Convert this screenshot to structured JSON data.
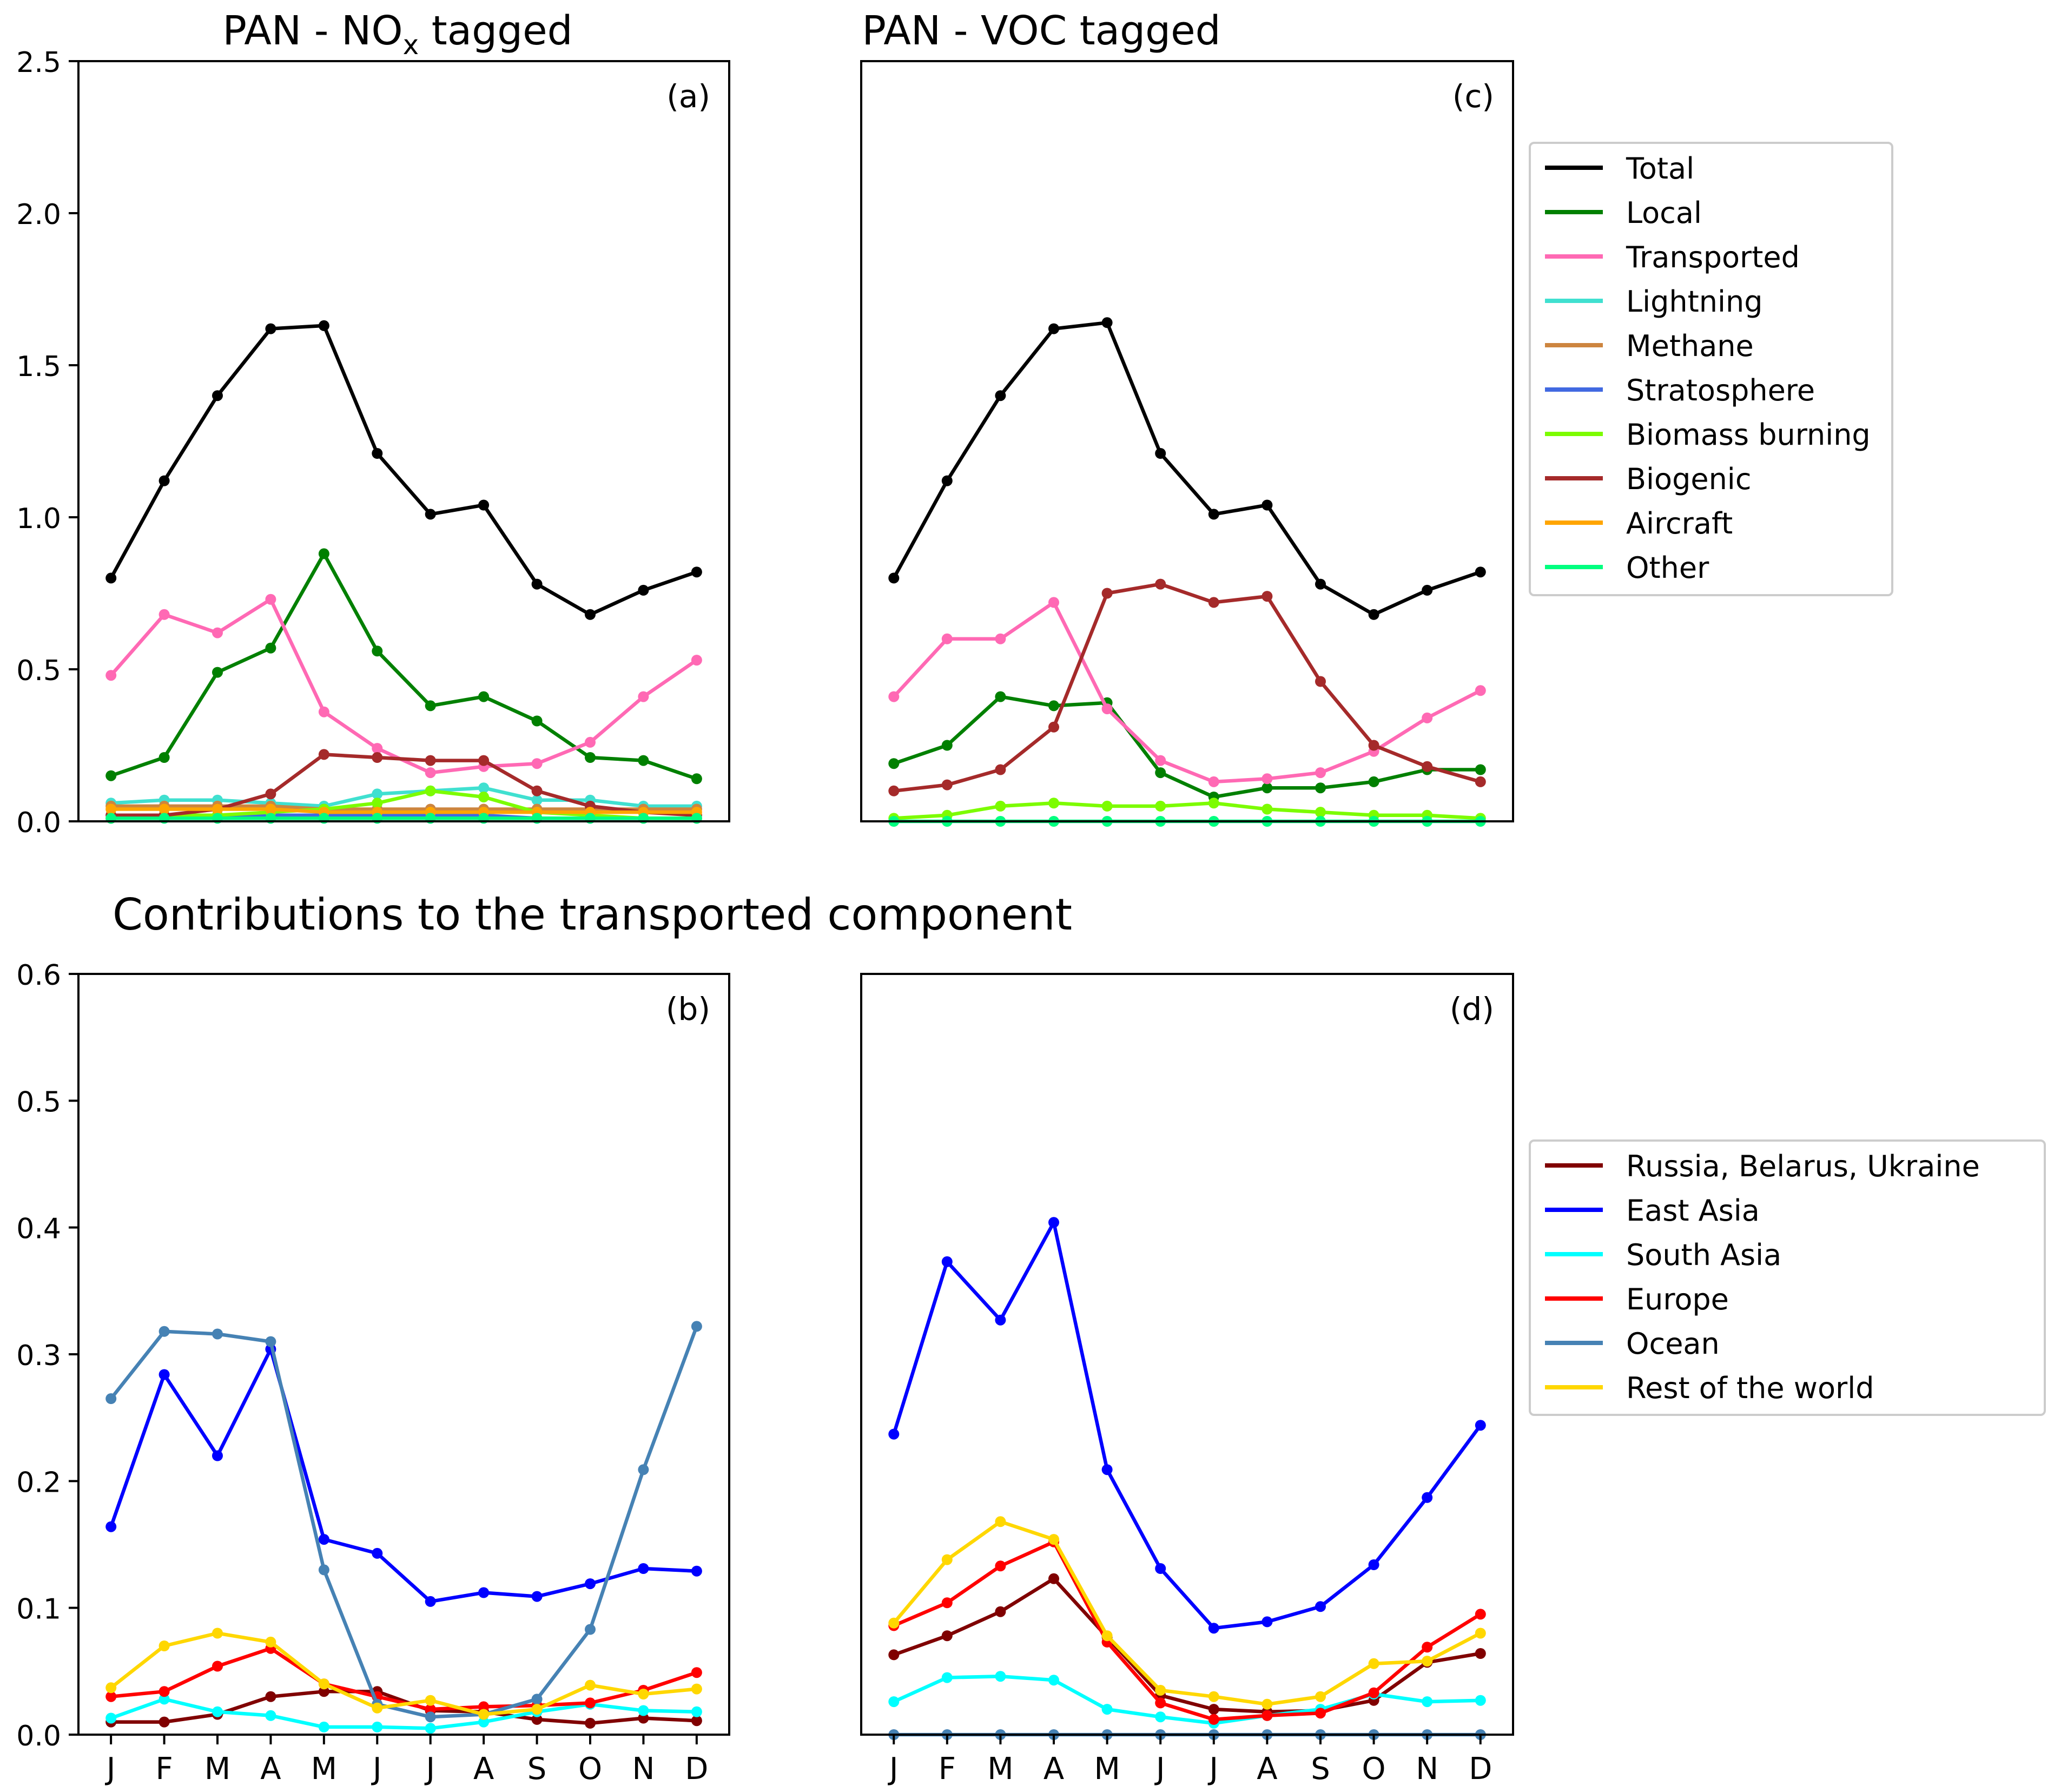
{
  "months": [
    "J",
    "F",
    "M",
    "A",
    "M",
    "J",
    "J",
    "A",
    "S",
    "O",
    "N",
    "D"
  ],
  "section_title": "Contributions to the transported component",
  "legend_top": [
    {
      "name": "Total",
      "color": "#000000"
    },
    {
      "name": "Local",
      "color": "#008000"
    },
    {
      "name": "Transported",
      "color": "#ff69b4"
    },
    {
      "name": "Lightning",
      "color": "#40e0d0"
    },
    {
      "name": "Methane",
      "color": "#cd853f"
    },
    {
      "name": "Stratosphere",
      "color": "#4169e1"
    },
    {
      "name": "Biomass burning",
      "color": "#7cfc00"
    },
    {
      "name": "Biogenic",
      "color": "#a52a2a"
    },
    {
      "name": "Aircraft",
      "color": "#ffa500"
    },
    {
      "name": "Other",
      "color": "#00ff7f"
    }
  ],
  "legend_bottom": [
    {
      "name": "Russia, Belarus, Ukraine",
      "color": "#800000"
    },
    {
      "name": "East Asia",
      "color": "#0000ff"
    },
    {
      "name": "South Asia",
      "color": "#00ffff"
    },
    {
      "name": "Europe",
      "color": "#ff0000"
    },
    {
      "name": "Ocean",
      "color": "#4682b4"
    },
    {
      "name": "Rest of the world",
      "color": "#ffd700"
    }
  ],
  "chart_data": [
    {
      "type": "line",
      "panel": "(a)",
      "title_parts": [
        "PAN",
        " - NO",
        "x",
        " tagged"
      ],
      "ylim": [
        0,
        2.5
      ],
      "yticks": [
        "0.0",
        "0.5",
        "1.0",
        "1.5",
        "2.0",
        "2.5"
      ],
      "show_yticks": true,
      "show_xticks": false,
      "series": [
        {
          "name": "Total",
          "color": "#000000",
          "values": [
            0.8,
            1.12,
            1.4,
            1.62,
            1.63,
            1.21,
            1.01,
            1.04,
            0.78,
            0.68,
            0.76,
            0.82
          ]
        },
        {
          "name": "Local",
          "color": "#008000",
          "values": [
            0.15,
            0.21,
            0.49,
            0.57,
            0.88,
            0.56,
            0.38,
            0.41,
            0.33,
            0.21,
            0.2,
            0.14
          ]
        },
        {
          "name": "Transported",
          "color": "#ff69b4",
          "values": [
            0.48,
            0.68,
            0.62,
            0.73,
            0.36,
            0.24,
            0.16,
            0.18,
            0.19,
            0.26,
            0.41,
            0.53
          ]
        },
        {
          "name": "Lightning",
          "color": "#40e0d0",
          "values": [
            0.06,
            0.07,
            0.07,
            0.06,
            0.05,
            0.09,
            0.1,
            0.11,
            0.07,
            0.07,
            0.05,
            0.05
          ]
        },
        {
          "name": "Methane",
          "color": "#cd853f",
          "values": [
            0.05,
            0.05,
            0.05,
            0.05,
            0.04,
            0.04,
            0.04,
            0.04,
            0.04,
            0.04,
            0.04,
            0.04
          ]
        },
        {
          "name": "Stratosphere",
          "color": "#4169e1",
          "values": [
            0.02,
            0.02,
            0.02,
            0.02,
            0.02,
            0.02,
            0.02,
            0.02,
            0.01,
            0.01,
            0.01,
            0.01
          ]
        },
        {
          "name": "Biomass burning",
          "color": "#7cfc00",
          "values": [
            0.01,
            0.02,
            0.02,
            0.03,
            0.04,
            0.06,
            0.1,
            0.08,
            0.03,
            0.02,
            0.01,
            0.01
          ]
        },
        {
          "name": "Biogenic",
          "color": "#a52a2a",
          "values": [
            0.02,
            0.02,
            0.04,
            0.09,
            0.22,
            0.21,
            0.2,
            0.2,
            0.1,
            0.05,
            0.03,
            0.02
          ]
        },
        {
          "name": "Aircraft",
          "color": "#ffa500",
          "values": [
            0.04,
            0.04,
            0.04,
            0.04,
            0.03,
            0.03,
            0.03,
            0.03,
            0.03,
            0.03,
            0.03,
            0.03
          ]
        },
        {
          "name": "Other",
          "color": "#00ff7f",
          "values": [
            0.01,
            0.01,
            0.01,
            0.01,
            0.01,
            0.01,
            0.01,
            0.01,
            0.01,
            0.01,
            0.01,
            0.01
          ]
        }
      ]
    },
    {
      "type": "line",
      "panel": "(c)",
      "title_parts": [
        "PAN",
        " - VOC tagged",
        "",
        ""
      ],
      "ylim": [
        0,
        2.5
      ],
      "yticks": [],
      "show_yticks": false,
      "show_xticks": false,
      "series": [
        {
          "name": "Total",
          "color": "#000000",
          "values": [
            0.8,
            1.12,
            1.4,
            1.62,
            1.64,
            1.21,
            1.01,
            1.04,
            0.78,
            0.68,
            0.76,
            0.82
          ]
        },
        {
          "name": "Local",
          "color": "#008000",
          "values": [
            0.19,
            0.25,
            0.41,
            0.38,
            0.39,
            0.16,
            0.08,
            0.11,
            0.11,
            0.13,
            0.17,
            0.17
          ]
        },
        {
          "name": "Transported",
          "color": "#ff69b4",
          "values": [
            0.41,
            0.6,
            0.6,
            0.72,
            0.37,
            0.2,
            0.13,
            0.14,
            0.16,
            0.23,
            0.34,
            0.43
          ]
        },
        {
          "name": "Biomass burning",
          "color": "#7cfc00",
          "values": [
            0.01,
            0.02,
            0.05,
            0.06,
            0.05,
            0.05,
            0.06,
            0.04,
            0.03,
            0.02,
            0.02,
            0.01
          ]
        },
        {
          "name": "Biogenic",
          "color": "#a52a2a",
          "values": [
            0.1,
            0.12,
            0.17,
            0.31,
            0.75,
            0.78,
            0.72,
            0.74,
            0.46,
            0.25,
            0.18,
            0.13
          ]
        },
        {
          "name": "Other",
          "color": "#00ff7f",
          "values": [
            0.0,
            0.0,
            0.0,
            0.0,
            0.0,
            0.0,
            0.0,
            0.0,
            0.0,
            0.0,
            0.0,
            0.0
          ]
        }
      ]
    },
    {
      "type": "line",
      "panel": "(b)",
      "title_parts": [
        "",
        "",
        "",
        ""
      ],
      "ylim": [
        0,
        0.6
      ],
      "yticks": [
        "0.0",
        "0.1",
        "0.2",
        "0.3",
        "0.4",
        "0.5",
        "0.6"
      ],
      "show_yticks": true,
      "show_xticks": true,
      "series": [
        {
          "name": "Russia, Belarus, Ukraine",
          "color": "#800000",
          "values": [
            0.01,
            0.01,
            0.016,
            0.03,
            0.034,
            0.034,
            0.019,
            0.018,
            0.012,
            0.009,
            0.013,
            0.011
          ]
        },
        {
          "name": "East Asia",
          "color": "#0000ff",
          "values": [
            0.164,
            0.284,
            0.22,
            0.304,
            0.154,
            0.143,
            0.105,
            0.112,
            0.109,
            0.119,
            0.131,
            0.129
          ]
        },
        {
          "name": "South Asia",
          "color": "#00ffff",
          "values": [
            0.013,
            0.028,
            0.018,
            0.015,
            0.006,
            0.006,
            0.005,
            0.01,
            0.018,
            0.024,
            0.019,
            0.018
          ]
        },
        {
          "name": "Europe",
          "color": "#ff0000",
          "values": [
            0.03,
            0.034,
            0.054,
            0.068,
            0.04,
            0.03,
            0.02,
            0.022,
            0.023,
            0.025,
            0.035,
            0.049
          ]
        },
        {
          "name": "Ocean",
          "color": "#4682b4",
          "values": [
            0.265,
            0.318,
            0.316,
            0.31,
            0.13,
            0.024,
            0.014,
            0.016,
            0.028,
            0.083,
            0.209,
            0.322
          ]
        },
        {
          "name": "Rest of the world",
          "color": "#ffd700",
          "values": [
            0.037,
            0.07,
            0.08,
            0.073,
            0.04,
            0.021,
            0.027,
            0.016,
            0.02,
            0.039,
            0.032,
            0.036
          ]
        }
      ]
    },
    {
      "type": "line",
      "panel": "(d)",
      "title_parts": [
        "",
        "",
        "",
        ""
      ],
      "ylim": [
        0,
        0.6
      ],
      "yticks": [],
      "show_yticks": false,
      "show_xticks": true,
      "series": [
        {
          "name": "Russia, Belarus, Ukraine",
          "color": "#800000",
          "values": [
            0.063,
            0.078,
            0.097,
            0.123,
            0.077,
            0.031,
            0.02,
            0.018,
            0.019,
            0.027,
            0.057,
            0.064
          ]
        },
        {
          "name": "East Asia",
          "color": "#0000ff",
          "values": [
            0.237,
            0.373,
            0.327,
            0.404,
            0.209,
            0.131,
            0.084,
            0.089,
            0.101,
            0.134,
            0.187,
            0.244
          ]
        },
        {
          "name": "South Asia",
          "color": "#00ffff",
          "values": [
            0.026,
            0.045,
            0.046,
            0.043,
            0.02,
            0.014,
            0.009,
            0.015,
            0.02,
            0.032,
            0.026,
            0.027
          ]
        },
        {
          "name": "Europe",
          "color": "#ff0000",
          "values": [
            0.086,
            0.104,
            0.133,
            0.152,
            0.073,
            0.025,
            0.012,
            0.015,
            0.017,
            0.033,
            0.069,
            0.095
          ]
        },
        {
          "name": "Ocean",
          "color": "#4682b4",
          "values": [
            0.0,
            0.0,
            0.0,
            0.0,
            0.0,
            0.0,
            0.0,
            0.0,
            0.0,
            0.0,
            0.0,
            0.0
          ]
        },
        {
          "name": "Rest of the world",
          "color": "#ffd700",
          "values": [
            0.088,
            0.138,
            0.168,
            0.154,
            0.078,
            0.035,
            0.03,
            0.024,
            0.03,
            0.056,
            0.058,
            0.08
          ]
        }
      ]
    }
  ]
}
